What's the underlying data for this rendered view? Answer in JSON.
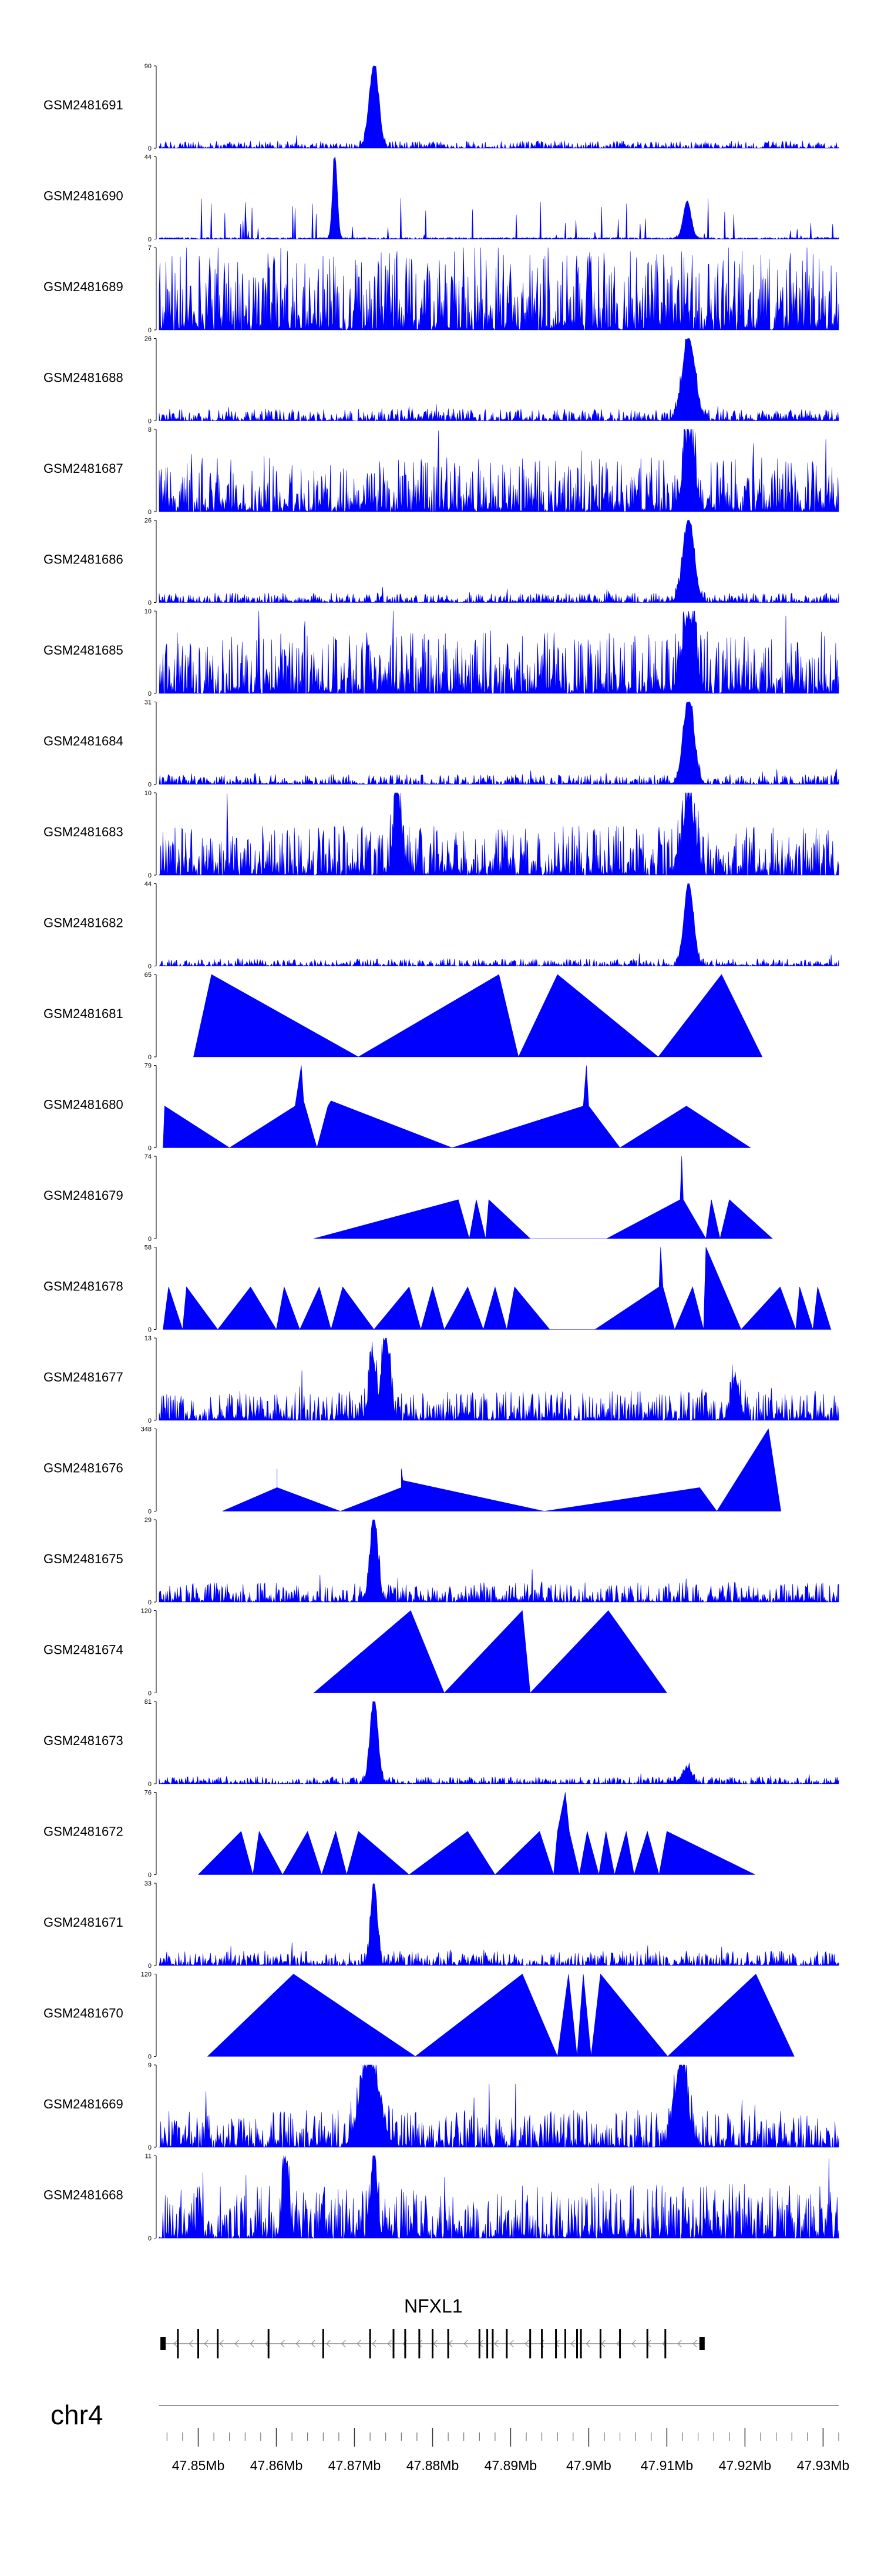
{
  "chart_data": {
    "type": "area",
    "title": "",
    "chromosome": "chr4",
    "xlabel": "",
    "ylabel": "",
    "x_range_mb": [
      47.845,
      47.932
    ],
    "x_ticks": [
      {
        "value": 47.85,
        "label": "47.85Mb"
      },
      {
        "value": 47.86,
        "label": "47.86Mb"
      },
      {
        "value": 47.87,
        "label": "47.87Mb"
      },
      {
        "value": 47.88,
        "label": "47.88Mb"
      },
      {
        "value": 47.89,
        "label": "47.89Mb"
      },
      {
        "value": 47.9,
        "label": "47.9Mb"
      },
      {
        "value": 47.91,
        "label": "47.91Mb"
      },
      {
        "value": 47.92,
        "label": "47.92Mb"
      },
      {
        "value": 47.93,
        "label": "47.93Mb"
      }
    ],
    "gene": {
      "name": "NFXL1",
      "strand": "-",
      "start_mb": 47.8454,
      "end_mb": 47.9148,
      "exons_mb": [
        47.8455,
        47.8474,
        47.85,
        47.8525,
        47.859,
        47.866,
        47.872,
        47.875,
        47.8765,
        47.8783,
        47.88,
        47.882,
        47.886,
        47.887,
        47.8877,
        47.8895,
        47.8925,
        47.894,
        47.8958,
        47.897,
        47.8985,
        47.899,
        47.9015,
        47.904,
        47.9075,
        47.9098,
        47.9145
      ]
    },
    "series": [
      {
        "name": "GSM2481691",
        "ymax": 90,
        "style": "noise",
        "base": 0.03,
        "peaks": [
          {
            "x": 47.8725,
            "v": 90,
            "w": 0.0006
          }
        ]
      },
      {
        "name": "GSM2481690",
        "ymax": 44,
        "style": "sparse",
        "base": 0.15,
        "peaks": [
          {
            "x": 47.8675,
            "v": 44,
            "w": 0.0003
          },
          {
            "x": 47.9126,
            "v": 20,
            "w": 0.0005
          }
        ]
      },
      {
        "name": "GSM2481689",
        "ymax": 7,
        "style": "noise",
        "base": 0.32,
        "peaks": []
      },
      {
        "name": "GSM2481688",
        "ymax": 26,
        "style": "noise",
        "base": 0.05,
        "peaks": [
          {
            "x": 47.9128,
            "v": 26,
            "w": 0.0008
          }
        ]
      },
      {
        "name": "GSM2481687",
        "ymax": 8,
        "style": "noise",
        "base": 0.22,
        "peaks": [
          {
            "x": 47.9128,
            "v": 7,
            "w": 0.0007
          }
        ]
      },
      {
        "name": "GSM2481686",
        "ymax": 26,
        "style": "noise",
        "base": 0.04,
        "peaks": [
          {
            "x": 47.9128,
            "v": 26,
            "w": 0.0007
          }
        ]
      },
      {
        "name": "GSM2481685",
        "ymax": 10,
        "style": "noise",
        "base": 0.25,
        "peaks": [
          {
            "x": 47.9128,
            "v": 9,
            "w": 0.0008
          }
        ]
      },
      {
        "name": "GSM2481684",
        "ymax": 31,
        "style": "noise",
        "base": 0.04,
        "peaks": [
          {
            "x": 47.9128,
            "v": 31,
            "w": 0.0007
          }
        ]
      },
      {
        "name": "GSM2481683",
        "ymax": 10,
        "style": "noise",
        "base": 0.2,
        "peaks": [
          {
            "x": 47.9128,
            "v": 9,
            "w": 0.0007
          },
          {
            "x": 47.8755,
            "v": 9,
            "w": 0.0005
          }
        ]
      },
      {
        "name": "GSM2481682",
        "ymax": 44,
        "style": "noise",
        "base": 0.03,
        "peaks": [
          {
            "x": 47.9128,
            "v": 44,
            "w": 0.0006
          }
        ]
      },
      {
        "name": "GSM2481681",
        "ymax": 65,
        "style": "triangles",
        "points": [
          [
            47.8494,
            0
          ],
          [
            47.8517,
            65
          ],
          [
            47.8705,
            0
          ],
          [
            47.8885,
            65
          ],
          [
            47.891,
            0
          ],
          [
            47.896,
            65
          ],
          [
            47.9089,
            0
          ],
          [
            47.917,
            65
          ],
          [
            47.9222,
            0
          ]
        ]
      },
      {
        "name": "GSM2481680",
        "ymax": 79,
        "style": "triangles",
        "points": [
          [
            47.8455,
            0
          ],
          [
            47.8457,
            40
          ],
          [
            47.854,
            0
          ],
          [
            47.8624,
            40
          ],
          [
            47.8632,
            79
          ],
          [
            47.8635,
            45
          ],
          [
            47.8652,
            0
          ],
          [
            47.8666,
            40
          ],
          [
            47.867,
            45
          ],
          [
            47.8825,
            0
          ],
          [
            47.8993,
            40
          ],
          [
            47.8997,
            79
          ],
          [
            47.9,
            40
          ],
          [
            47.904,
            0
          ],
          [
            47.9125,
            40
          ],
          [
            47.9207,
            0
          ]
        ]
      },
      {
        "name": "GSM2481679",
        "ymax": 74,
        "style": "triangles",
        "points": [
          [
            47.8648,
            0
          ],
          [
            47.8833,
            35
          ],
          [
            47.8847,
            0
          ],
          [
            47.8856,
            35
          ],
          [
            47.8868,
            0
          ],
          [
            47.8872,
            35
          ],
          [
            47.8925,
            0
          ],
          [
            47.9023,
            0
          ],
          [
            47.9117,
            35
          ],
          [
            47.9119,
            74
          ],
          [
            47.9121,
            35
          ],
          [
            47.915,
            0
          ],
          [
            47.9157,
            35
          ],
          [
            47.9168,
            0
          ],
          [
            47.918,
            35
          ],
          [
            47.9235,
            0
          ]
        ]
      },
      {
        "name": "GSM2481678",
        "ymax": 58,
        "style": "triangles",
        "points": [
          [
            47.8455,
            0
          ],
          [
            47.8462,
            30
          ],
          [
            47.848,
            0
          ],
          [
            47.8485,
            30
          ],
          [
            47.8525,
            0
          ],
          [
            47.8567,
            30
          ],
          [
            47.86,
            0
          ],
          [
            47.861,
            30
          ],
          [
            47.863,
            0
          ],
          [
            47.8655,
            30
          ],
          [
            47.867,
            0
          ],
          [
            47.8685,
            30
          ],
          [
            47.8725,
            0
          ],
          [
            47.877,
            30
          ],
          [
            47.8785,
            0
          ],
          [
            47.88,
            30
          ],
          [
            47.8815,
            0
          ],
          [
            47.8845,
            30
          ],
          [
            47.8865,
            0
          ],
          [
            47.888,
            30
          ],
          [
            47.8895,
            0
          ],
          [
            47.8905,
            30
          ],
          [
            47.895,
            0
          ],
          [
            47.9008,
            0
          ],
          [
            47.909,
            30
          ],
          [
            47.9092,
            58
          ],
          [
            47.9095,
            30
          ],
          [
            47.911,
            0
          ],
          [
            47.9133,
            30
          ],
          [
            47.9147,
            0
          ],
          [
            47.915,
            58
          ],
          [
            47.9195,
            0
          ],
          [
            47.9245,
            30
          ],
          [
            47.9265,
            0
          ],
          [
            47.927,
            30
          ],
          [
            47.9287,
            0
          ],
          [
            47.9293,
            30
          ],
          [
            47.931,
            0
          ]
        ]
      },
      {
        "name": "GSM2481677",
        "ymax": 13,
        "style": "noise",
        "base": 0.12,
        "peaks": [
          {
            "x": 47.874,
            "v": 13,
            "w": 0.0005
          },
          {
            "x": 47.8723,
            "v": 10,
            "w": 0.0004
          },
          {
            "x": 47.9188,
            "v": 6,
            "w": 0.0005
          }
        ]
      },
      {
        "name": "GSM2481676",
        "ymax": 348,
        "style": "triangles",
        "points": [
          [
            47.8531,
            0
          ],
          [
            47.8601,
            100
          ],
          [
            47.8601,
            180
          ],
          [
            47.8601,
            100
          ],
          [
            47.8682,
            0
          ],
          [
            47.876,
            100
          ],
          [
            47.876,
            180
          ],
          [
            47.8762,
            130
          ],
          [
            47.8943,
            0
          ],
          [
            47.9142,
            100
          ],
          [
            47.9164,
            0
          ],
          [
            47.923,
            348
          ],
          [
            47.9246,
            0
          ]
        ]
      },
      {
        "name": "GSM2481675",
        "ymax": 29,
        "style": "noise",
        "base": 0.08,
        "peaks": [
          {
            "x": 47.8725,
            "v": 29,
            "w": 0.0005
          }
        ]
      },
      {
        "name": "GSM2481674",
        "ymax": 120,
        "style": "triangles",
        "points": [
          [
            47.8648,
            0
          ],
          [
            47.8772,
            120
          ],
          [
            47.8815,
            0
          ],
          [
            47.8915,
            120
          ],
          [
            47.8925,
            0
          ],
          [
            47.9025,
            120
          ],
          [
            47.91,
            0
          ]
        ]
      },
      {
        "name": "GSM2481673",
        "ymax": 81,
        "style": "noise",
        "base": 0.03,
        "peaks": [
          {
            "x": 47.8725,
            "v": 81,
            "w": 0.0005
          },
          {
            "x": 47.9126,
            "v": 15,
            "w": 0.0006
          }
        ]
      },
      {
        "name": "GSM2481672",
        "ymax": 76,
        "style": "triangles",
        "points": [
          [
            47.85,
            0
          ],
          [
            47.8555,
            40
          ],
          [
            47.857,
            0
          ],
          [
            47.8578,
            40
          ],
          [
            47.8608,
            0
          ],
          [
            47.864,
            40
          ],
          [
            47.8658,
            0
          ],
          [
            47.8676,
            40
          ],
          [
            47.869,
            0
          ],
          [
            47.8705,
            40
          ],
          [
            47.877,
            0
          ],
          [
            47.8845,
            40
          ],
          [
            47.888,
            0
          ],
          [
            47.8937,
            40
          ],
          [
            47.8955,
            0
          ],
          [
            47.896,
            40
          ],
          [
            47.897,
            76
          ],
          [
            47.8975,
            40
          ],
          [
            47.8988,
            0
          ],
          [
            47.8998,
            40
          ],
          [
            47.9013,
            0
          ],
          [
            47.9022,
            40
          ],
          [
            47.9033,
            0
          ],
          [
            47.9048,
            40
          ],
          [
            47.9058,
            0
          ],
          [
            47.9075,
            40
          ],
          [
            47.909,
            0
          ],
          [
            47.91,
            40
          ],
          [
            47.9213,
            0
          ]
        ]
      },
      {
        "name": "GSM2481671",
        "ymax": 33,
        "style": "noise",
        "base": 0.06,
        "peaks": [
          {
            "x": 47.8725,
            "v": 33,
            "w": 0.0004
          }
        ]
      },
      {
        "name": "GSM2481670",
        "ymax": 120,
        "style": "triangles",
        "points": [
          [
            47.8512,
            0
          ],
          [
            47.8622,
            120
          ],
          [
            47.8778,
            0
          ],
          [
            47.8915,
            120
          ],
          [
            47.896,
            0
          ],
          [
            47.8974,
            120
          ],
          [
            47.8985,
            0
          ],
          [
            47.8993,
            120
          ],
          [
            47.9003,
            0
          ],
          [
            47.9015,
            120
          ],
          [
            47.9101,
            0
          ],
          [
            47.9214,
            120
          ],
          [
            47.9263,
            0
          ]
        ]
      },
      {
        "name": "GSM2481669",
        "ymax": 9,
        "style": "noise",
        "base": 0.15,
        "peaks": [
          {
            "x": 47.872,
            "v": 9,
            "w": 0.0012
          },
          {
            "x": 47.9118,
            "v": 9,
            "w": 0.0008
          }
        ]
      },
      {
        "name": "GSM2481668",
        "ymax": 11,
        "style": "noise",
        "base": 0.22,
        "peaks": [
          {
            "x": 47.8725,
            "v": 11,
            "w": 0.0004
          },
          {
            "x": 47.8612,
            "v": 10,
            "w": 0.0004
          }
        ]
      }
    ]
  }
}
